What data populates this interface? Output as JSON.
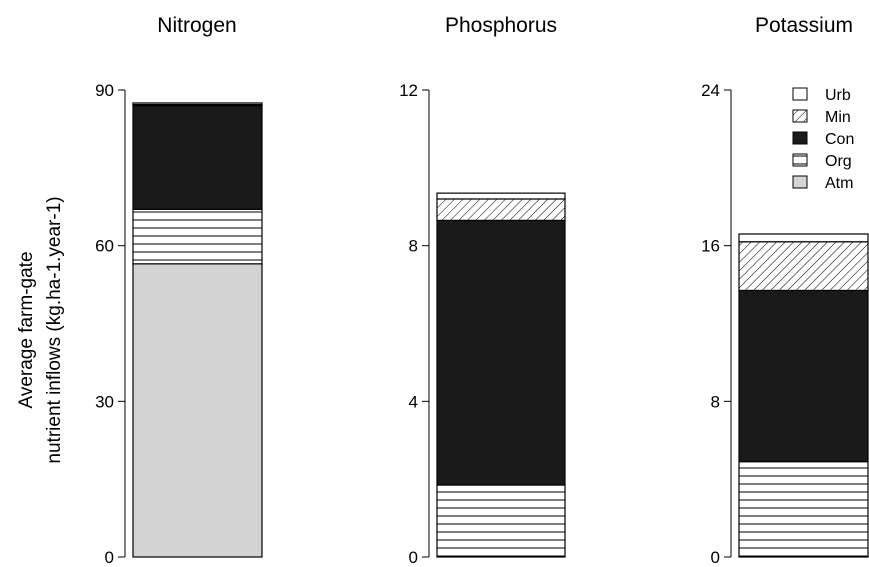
{
  "chart_data": {
    "type": "bar",
    "stacked": true,
    "ylabel": [
      "Average farm-gate",
      "nutrient inflows (kg.ha-1.year-1)"
    ],
    "legend": {
      "placement": "top-right",
      "entries": [
        {
          "label": "Urb",
          "fill": "white"
        },
        {
          "label": "Min",
          "fill": "diagonal-hatch"
        },
        {
          "label": "Con",
          "fill": "#1a1a1a"
        },
        {
          "label": "Org",
          "fill": "horizontal-lines"
        },
        {
          "label": "Atm",
          "fill": "#d3d3d3"
        }
      ]
    },
    "panels": [
      {
        "title": "Nitrogen",
        "ylim": [
          0,
          90
        ],
        "ticks": [
          0,
          30,
          60,
          90
        ],
        "segments": [
          {
            "name": "Atm",
            "value": 56.5
          },
          {
            "name": "Org",
            "value": 10.5
          },
          {
            "name": "Con",
            "value": 20.0
          },
          {
            "name": "Min",
            "value": 0.2
          },
          {
            "name": "Urb",
            "value": 0.3
          }
        ]
      },
      {
        "title": "Phosphorus",
        "ylim": [
          0,
          12
        ],
        "ticks": [
          0,
          4,
          8,
          12
        ],
        "segments": [
          {
            "name": "Atm",
            "value": 0.0
          },
          {
            "name": "Org",
            "value": 1.85
          },
          {
            "name": "Con",
            "value": 6.8
          },
          {
            "name": "Min",
            "value": 0.55
          },
          {
            "name": "Urb",
            "value": 0.15
          }
        ]
      },
      {
        "title": "Potassium",
        "ylim": [
          0,
          24
        ],
        "ticks": [
          0,
          8,
          16,
          24
        ],
        "segments": [
          {
            "name": "Atm",
            "value": 0.0
          },
          {
            "name": "Org",
            "value": 4.9
          },
          {
            "name": "Con",
            "value": 8.8
          },
          {
            "name": "Min",
            "value": 2.5
          },
          {
            "name": "Urb",
            "value": 0.4
          }
        ]
      }
    ]
  }
}
